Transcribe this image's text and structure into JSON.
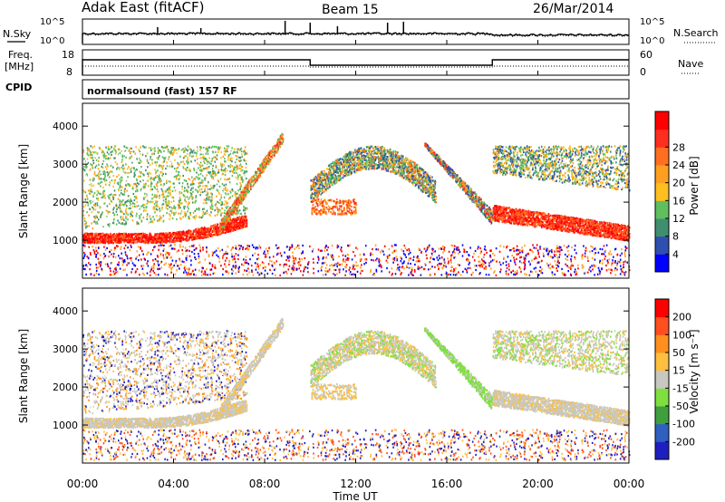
{
  "header": {
    "station": "Adak East (fitACF)",
    "beam": "Beam 15",
    "date": "26/Mar/2014"
  },
  "noise_panel": {
    "left_label": "N.Sky",
    "right_label": "N.Search",
    "ticks_left": [
      "10^5",
      "10^0"
    ],
    "ticks_right": [
      "10^5",
      "10^0"
    ]
  },
  "freq_panel": {
    "left_label_line1": "Freq.",
    "left_label_line2": "[MHz]",
    "right_label": "Nave",
    "ticks_left": [
      "18",
      "8"
    ],
    "ticks_right": [
      "60",
      "0"
    ]
  },
  "cpid": {
    "label": "CPID",
    "value": "normalsound (fast) 157 RF"
  },
  "chart_data": [
    {
      "type": "heatmap",
      "name": "power",
      "ylabel": "Slant Range [km]",
      "ylim": [
        0,
        4600
      ],
      "yticks": [
        "1000",
        "2000",
        "3000",
        "4000"
      ],
      "colorbar_label": "Power [dB]",
      "colorbar_ticks": [
        "4",
        "8",
        "12",
        "16",
        "20",
        "24",
        "28"
      ],
      "colors": [
        "#0000ff",
        "#2f4fb0",
        "#3f8f6f",
        "#5fbf5f",
        "#ffbf1f",
        "#ff9f1f",
        "#ff6f1f",
        "#ff2f1f",
        "#ff0000"
      ]
    },
    {
      "type": "heatmap",
      "name": "velocity",
      "ylabel": "Slant Range [km]",
      "ylim": [
        0,
        4600
      ],
      "yticks": [
        "1000",
        "2000",
        "3000",
        "4000"
      ],
      "colorbar_label": "Velocity [m s⁻¹]",
      "colorbar_ticks": [
        "200",
        "100",
        "50",
        "15",
        "-15",
        "-50",
        "-100",
        "-200"
      ],
      "colors": [
        "#1f1fbf",
        "#2f5fbf",
        "#3f9f3f",
        "#7fdf3f",
        "#c8c8c0",
        "#ffbf3f",
        "#ff8f1f",
        "#ff4f1f",
        "#ff0000"
      ]
    }
  ],
  "xaxis": {
    "label": "Time UT",
    "ticks": [
      "00:00",
      "04:00",
      "08:00",
      "12:00",
      "16:00",
      "20:00",
      "00:00"
    ]
  }
}
